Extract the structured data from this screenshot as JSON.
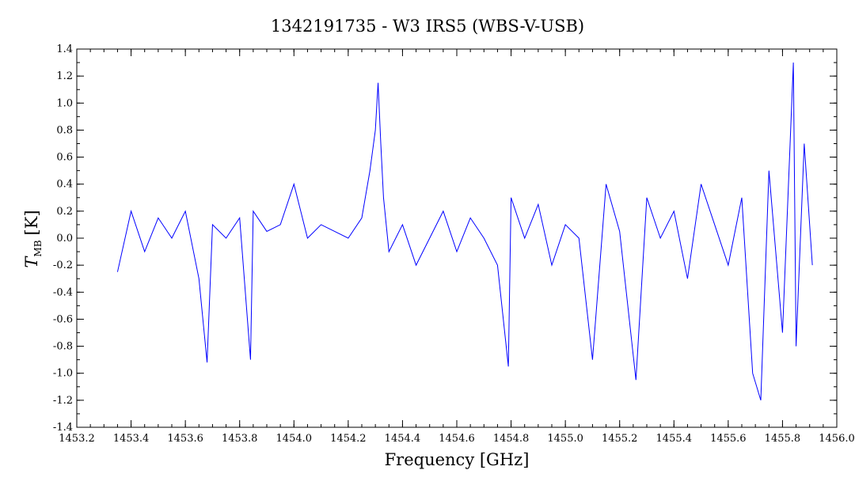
{
  "chart_data": {
    "type": "line",
    "title": "1342191735 - W3 IRS5 (WBS-V-USB)",
    "xlabel": "Frequency [GHz]",
    "ylabel_main": "T",
    "ylabel_sub": "MB",
    "ylabel_unit": "[K]",
    "xlim": [
      1453.2,
      1456.0
    ],
    "ylim": [
      -1.4,
      1.4
    ],
    "x_ticks": [
      1453.2,
      1453.4,
      1453.6,
      1453.8,
      1454.0,
      1454.2,
      1454.4,
      1454.6,
      1454.8,
      1455.0,
      1455.2,
      1455.4,
      1455.6,
      1455.8,
      1456.0
    ],
    "x_tick_labels": [
      "1453.2",
      "1453.4",
      "1453.6",
      "1453.8",
      "1454.0",
      "1454.2",
      "1454.4",
      "1454.6",
      "1454.8",
      "1455.0",
      "1455.2",
      "1455.4",
      "1455.6",
      "1455.8",
      "1456.0"
    ],
    "y_ticks": [
      -1.4,
      -1.2,
      -1.0,
      -0.8,
      -0.6,
      -0.4,
      -0.2,
      0.0,
      0.2,
      0.4,
      0.6,
      0.8,
      1.0,
      1.2,
      1.4
    ],
    "y_tick_labels": [
      "-1.4",
      "-1.2",
      "-1.0",
      "-0.8",
      "-0.6",
      "-0.4",
      "-0.2",
      "0.0",
      "0.2",
      "0.4",
      "0.6",
      "0.8",
      "1.0",
      "1.2",
      "1.4"
    ],
    "grid": false,
    "line_color": "#0000ff",
    "series": [
      {
        "x": [
          1453.35,
          1453.4,
          1453.45,
          1453.5,
          1453.55,
          1453.6,
          1453.65,
          1453.68,
          1453.7,
          1453.75,
          1453.8,
          1453.84,
          1453.85,
          1453.9,
          1453.95,
          1454.0,
          1454.05,
          1454.1,
          1454.15,
          1454.2,
          1454.25,
          1454.28,
          1454.3,
          1454.31,
          1454.32,
          1454.33,
          1454.35,
          1454.4,
          1454.45,
          1454.5,
          1454.55,
          1454.6,
          1454.65,
          1454.7,
          1454.75,
          1454.79,
          1454.8,
          1454.85,
          1454.9,
          1454.95,
          1455.0,
          1455.05,
          1455.1,
          1455.15,
          1455.2,
          1455.26,
          1455.3,
          1455.35,
          1455.4,
          1455.45,
          1455.5,
          1455.55,
          1455.6,
          1455.65,
          1455.69,
          1455.72,
          1455.75,
          1455.8,
          1455.84,
          1455.85,
          1455.88,
          1455.91
        ],
        "y": [
          -0.25,
          0.2,
          -0.1,
          0.15,
          0.0,
          0.2,
          -0.3,
          -0.92,
          0.1,
          0.0,
          0.15,
          -0.9,
          0.2,
          0.05,
          0.1,
          0.4,
          0.0,
          0.1,
          0.05,
          0.0,
          0.15,
          0.5,
          0.8,
          1.15,
          0.7,
          0.3,
          -0.1,
          0.1,
          -0.2,
          0.0,
          0.2,
          -0.1,
          0.15,
          0.0,
          -0.2,
          -0.95,
          0.3,
          0.0,
          0.25,
          -0.2,
          0.1,
          0.0,
          -0.9,
          0.4,
          0.05,
          -1.05,
          0.3,
          0.0,
          0.2,
          -0.3,
          0.4,
          0.1,
          -0.2,
          0.3,
          -1.0,
          -1.2,
          0.5,
          -0.7,
          1.3,
          -0.8,
          0.7,
          -0.2
        ]
      }
    ]
  }
}
